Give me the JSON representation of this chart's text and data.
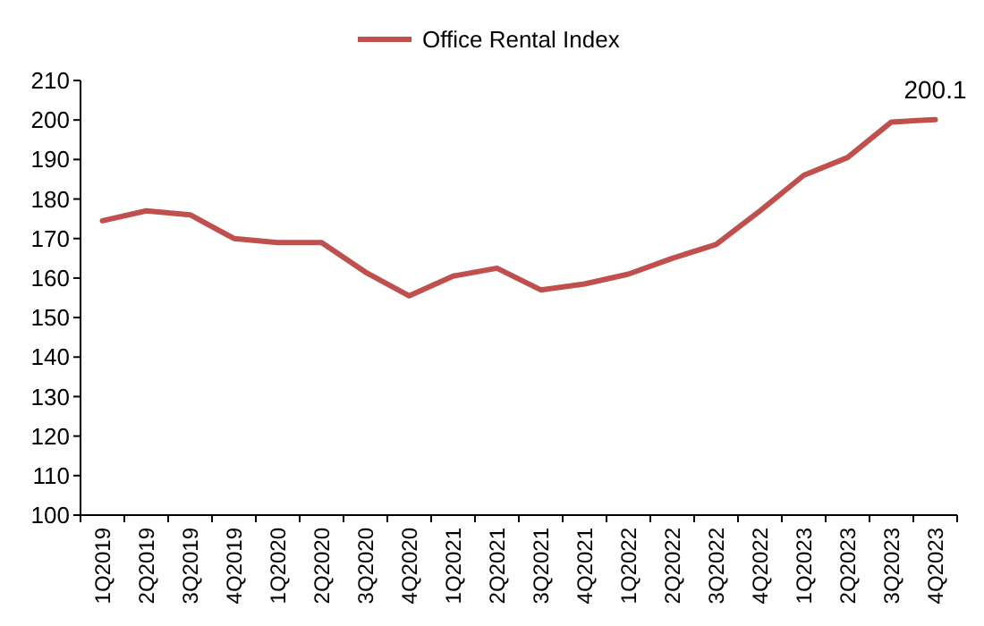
{
  "chart_data": {
    "type": "line",
    "categories": [
      "1Q2019",
      "2Q2019",
      "3Q2019",
      "4Q2019",
      "1Q2020",
      "2Q2020",
      "3Q2020",
      "4Q2020",
      "1Q2021",
      "2Q2021",
      "3Q2021",
      "4Q2021",
      "1Q2022",
      "2Q2022",
      "3Q2022",
      "4Q2022",
      "1Q2023",
      "2Q2023",
      "3Q2023",
      "4Q2023"
    ],
    "series": [
      {
        "name": "Office Rental Index",
        "color": "#c0504d",
        "values": [
          174.5,
          177,
          176,
          170,
          169,
          169,
          161.5,
          155.5,
          160.5,
          162.5,
          157,
          158.5,
          161,
          165,
          168.5,
          177,
          186,
          190.5,
          199.5,
          200.1
        ]
      }
    ],
    "ylim": [
      100,
      210
    ],
    "yticks": [
      100,
      110,
      120,
      130,
      140,
      150,
      160,
      170,
      180,
      190,
      200,
      210
    ],
    "annotations": [
      {
        "text": "200.1",
        "x": "4Q2023",
        "y": 200.1
      }
    ],
    "legend": "top",
    "grid": false,
    "marker": "none",
    "line_style": "solid"
  }
}
